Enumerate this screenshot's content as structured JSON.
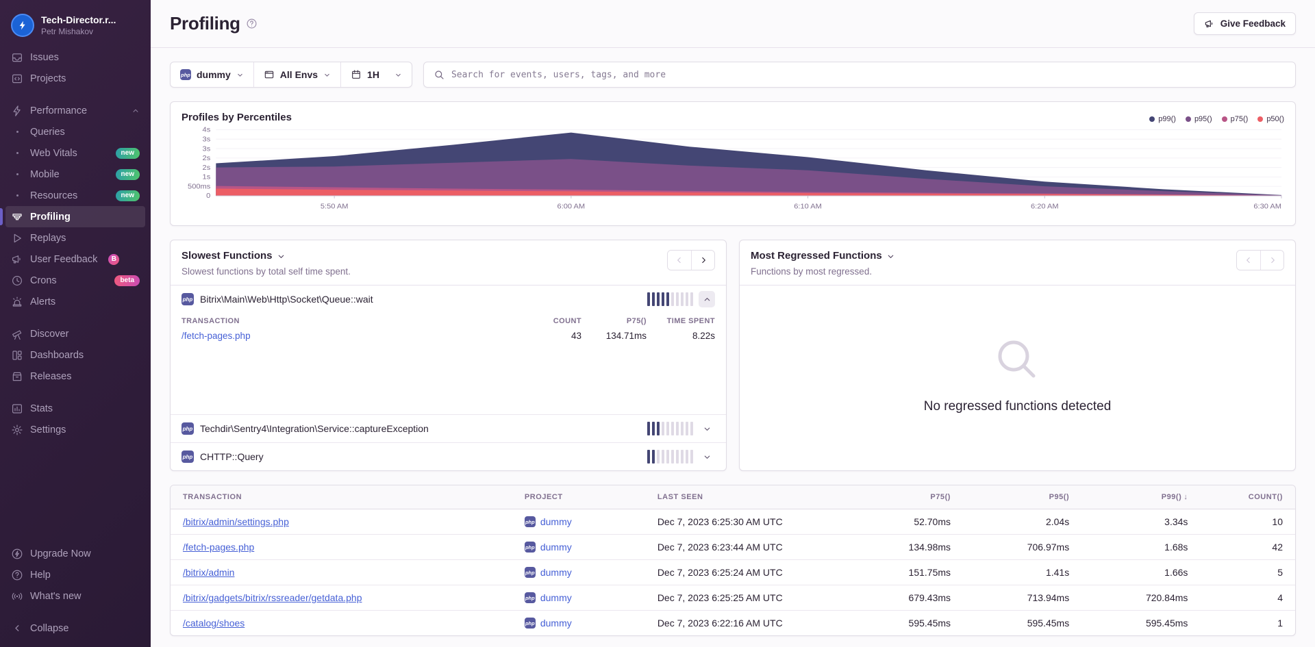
{
  "sidebar": {
    "org_name": "Tech-Director.r...",
    "user_name": "Petr Mishakov",
    "items": [
      {
        "icon": "inbox",
        "label": "Issues"
      },
      {
        "icon": "projects",
        "label": "Projects"
      },
      {
        "gap": true
      },
      {
        "icon": "lightning",
        "label": "Performance",
        "chevron": "up"
      },
      {
        "sub": true,
        "label": "Queries"
      },
      {
        "sub": true,
        "label": "Web Vitals",
        "badge": "new"
      },
      {
        "sub": true,
        "label": "Mobile",
        "badge": "new"
      },
      {
        "sub": true,
        "label": "Resources",
        "badge": "new"
      },
      {
        "icon": "profiling",
        "label": "Profiling",
        "active": true
      },
      {
        "icon": "play",
        "label": "Replays"
      },
      {
        "icon": "megaphone",
        "label": "User Feedback",
        "badge": "B"
      },
      {
        "icon": "clock",
        "label": "Crons",
        "badge": "beta"
      },
      {
        "icon": "siren",
        "label": "Alerts"
      },
      {
        "gap": true
      },
      {
        "icon": "telescope",
        "label": "Discover"
      },
      {
        "icon": "dashboards",
        "label": "Dashboards"
      },
      {
        "icon": "releases",
        "label": "Releases"
      },
      {
        "gap": true
      },
      {
        "icon": "stats",
        "label": "Stats"
      },
      {
        "icon": "gear",
        "label": "Settings"
      }
    ],
    "footer_items": [
      {
        "icon": "upgrade",
        "label": "Upgrade Now"
      },
      {
        "icon": "help-circle",
        "label": "Help"
      },
      {
        "icon": "broadcast",
        "label": "What's new"
      }
    ],
    "collapse_label": "Collapse"
  },
  "header": {
    "title": "Profiling",
    "feedback_button": "Give Feedback"
  },
  "filters": {
    "project": "dummy",
    "environment": "All Envs",
    "date_range": "1H",
    "search_placeholder": "Search for events, users, tags, and more"
  },
  "chart_data": {
    "type": "area",
    "title": "Profiles by Percentiles",
    "x": [
      "5:46 AM",
      "5:50 AM",
      "5:55 AM",
      "6:00 AM",
      "6:05 AM",
      "6:10 AM",
      "6:15 AM",
      "6:20 AM",
      "6:25 AM",
      "6:30 AM"
    ],
    "x_tick_indices": [
      1,
      3,
      5,
      7,
      9
    ],
    "x_tick_labels": [
      "5:50 AM",
      "6:00 AM",
      "6:10 AM",
      "6:20 AM",
      "6:30 AM"
    ],
    "series": [
      {
        "name": "p99()",
        "color": "#444674",
        "values": [
          1.72,
          2.1,
          2.7,
          3.35,
          2.6,
          2.05,
          1.35,
          0.75,
          0.35,
          0.04
        ]
      },
      {
        "name": "p95()",
        "color": "#7A5088",
        "values": [
          1.5,
          1.55,
          1.75,
          1.95,
          1.6,
          1.35,
          0.9,
          0.5,
          0.25,
          0.03
        ]
      },
      {
        "name": "p75()",
        "color": "#B85586",
        "values": [
          0.52,
          0.45,
          0.38,
          0.33,
          0.26,
          0.2,
          0.16,
          0.12,
          0.07,
          0.02
        ]
      },
      {
        "name": "p50()",
        "color": "#EC5E65",
        "values": [
          0.38,
          0.32,
          0.28,
          0.24,
          0.18,
          0.14,
          0.11,
          0.09,
          0.05,
          0.01
        ]
      }
    ],
    "unit": "seconds",
    "ylim": [
      0,
      3.5
    ],
    "y_tick_values": [
      0,
      0.5,
      1,
      1.5,
      2,
      2.5,
      3,
      3.5
    ],
    "y_tick_labels": [
      "0",
      "500ms",
      "1s",
      "2s",
      "2s",
      "3s",
      "3s",
      "4s"
    ],
    "grid": true,
    "legend_position": "top-right"
  },
  "slowest_functions": {
    "title": "Slowest Functions",
    "subtitle": "Slowest functions by total self time spent.",
    "items": [
      {
        "name": "Bitrix\\Main\\Web\\Http\\Socket\\Queue::wait",
        "platform": "php",
        "bars_filled": 5,
        "bars_total": 10,
        "expanded": true,
        "detail": {
          "columns": [
            "TRANSACTION",
            "COUNT",
            "P75()",
            "TIME SPENT"
          ],
          "rows": [
            {
              "transaction": "/fetch-pages.php",
              "count": "43",
              "p75": "134.71ms",
              "time_spent": "8.22s"
            }
          ]
        }
      },
      {
        "name": "Techdir\\Sentry4\\Integration\\Service::captureException",
        "platform": "php",
        "bars_filled": 3,
        "bars_total": 10,
        "expanded": false
      },
      {
        "name": "CHTTP::Query",
        "platform": "php",
        "bars_filled": 2,
        "bars_total": 10,
        "expanded": false
      }
    ]
  },
  "most_regressed": {
    "title": "Most Regressed Functions",
    "subtitle": "Functions by most regressed.",
    "empty_text": "No regressed functions detected"
  },
  "table": {
    "columns": [
      {
        "label": "TRANSACTION",
        "align": "left"
      },
      {
        "label": "PROJECT",
        "align": "left"
      },
      {
        "label": "LAST SEEN",
        "align": "left"
      },
      {
        "label": "P75()",
        "align": "right"
      },
      {
        "label": "P95()",
        "align": "right"
      },
      {
        "label": "P99()",
        "align": "right",
        "sorted": "desc"
      },
      {
        "label": "COUNT()",
        "align": "right"
      }
    ],
    "rows": [
      {
        "transaction": "/bitrix/admin/settings.php",
        "project": "dummy",
        "last_seen": "Dec 7, 2023 6:25:30 AM UTC",
        "p75": "52.70ms",
        "p95": "2.04s",
        "p99": "3.34s",
        "count": "10"
      },
      {
        "transaction": "/fetch-pages.php",
        "project": "dummy",
        "last_seen": "Dec 7, 2023 6:23:44 AM UTC",
        "p75": "134.98ms",
        "p95": "706.97ms",
        "p99": "1.68s",
        "count": "42"
      },
      {
        "transaction": "/bitrix/admin",
        "project": "dummy",
        "last_seen": "Dec 7, 2023 6:25:24 AM UTC",
        "p75": "151.75ms",
        "p95": "1.41s",
        "p99": "1.66s",
        "count": "5"
      },
      {
        "transaction": "/bitrix/gadgets/bitrix/rssreader/getdata.php",
        "project": "dummy",
        "last_seen": "Dec 7, 2023 6:25:25 AM UTC",
        "p75": "679.43ms",
        "p95": "713.94ms",
        "p99": "720.84ms",
        "count": "4"
      },
      {
        "transaction": "/catalog/shoes",
        "project": "dummy",
        "last_seen": "Dec 7, 2023 6:22:16 AM UTC",
        "p75": "595.45ms",
        "p95": "595.45ms",
        "p99": "595.45ms",
        "count": "1"
      }
    ]
  },
  "colors": {
    "p99": "#444674",
    "p95": "#7A5088",
    "p75": "#B85586",
    "p50": "#EC5E65",
    "link": "#4660D6",
    "accent": "#6C5FC7",
    "php_badge": "#57599F",
    "new_badge": "linear-gradient(#2C9FA8,#50C46B)",
    "beta_badge": "linear-gradient(#EE5A7D,#C94CB4)",
    "text_primary": "#2B2233",
    "text_secondary": "#80708F"
  }
}
